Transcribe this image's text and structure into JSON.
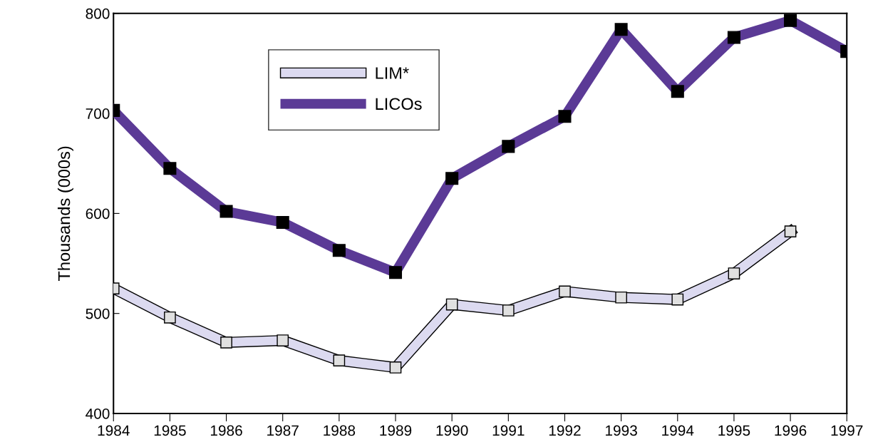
{
  "chart_data": {
    "type": "line",
    "ylabel": "Thousands (000s)",
    "x": [
      1984,
      1985,
      1986,
      1987,
      1988,
      1989,
      1990,
      1991,
      1992,
      1993,
      1994,
      1995,
      1996,
      1997
    ],
    "series": [
      {
        "name": "LIM*",
        "color": "#dcdaf0",
        "values": [
          525,
          496,
          471,
          473,
          453,
          446,
          509,
          503,
          522,
          516,
          514,
          540,
          582,
          null
        ]
      },
      {
        "name": "LICOs",
        "color": "#5b3a96",
        "values": [
          703,
          645,
          602,
          591,
          563,
          541,
          635,
          667,
          697,
          784,
          722,
          776,
          793,
          762
        ]
      }
    ],
    "xlim": [
      1984,
      1997
    ],
    "xticks": [
      1984,
      1985,
      1986,
      1987,
      1988,
      1989,
      1990,
      1991,
      1992,
      1993,
      1994,
      1995,
      1996,
      1997
    ],
    "ylim": [
      400,
      800
    ],
    "yticks": [
      400,
      500,
      600,
      700,
      800
    ],
    "grid": false,
    "legend": "top left",
    "marker": "square",
    "line_style": "solid"
  }
}
